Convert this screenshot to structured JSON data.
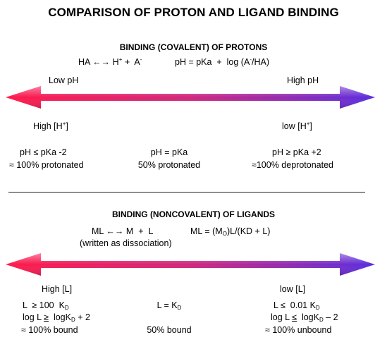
{
  "title": "COMPARISON OF PROTON AND LIGAND BINDING",
  "protons": {
    "heading": "BINDING (COVALENT) OF PROTONS",
    "reaction": {
      "lhs": "HA",
      "arrows": "←→",
      "h": "H",
      "plus_sup": "+",
      "mid": " +  A",
      "minus_sup": "-"
    },
    "equation": {
      "pre": "pH = pKa  +  log (A",
      "minus_sup": "-",
      "post": "/HA)"
    },
    "low_label": "Low pH",
    "high_label": "High pH",
    "left_conc": {
      "pre": "High [H",
      "sup": "+",
      "post": "]"
    },
    "right_conc": {
      "pre": "low [H",
      "sup": "+",
      "post": "]"
    },
    "left_cond": "pH ≤ pKa -2",
    "left_state": "≈ 100% protonated",
    "mid_cond": "pH = pKa",
    "mid_state": "50% protonated",
    "right_cond": "pH ≥ pKa +2",
    "right_state": "≈100% deprotonated"
  },
  "ligands": {
    "heading": "BINDING (NONCOVALENT) OF LIGANDS",
    "reaction": {
      "lhs": "ML",
      "arrows": "←→",
      "rhs": "M  +  L"
    },
    "reaction_note": "(written as dissociation)",
    "equation": {
      "pre": "ML = (M",
      "sub": "O",
      "post": ")L/(KD + L)"
    },
    "left_conc": "High [L]",
    "right_conc": "low [L]",
    "left_cond1": {
      "pre": "L  ≥ 100  K",
      "sub": "D"
    },
    "left_cond2": {
      "pre": "log L ",
      "op": "≥",
      "mid": "  logK",
      "sub": "D",
      "post": " + 2"
    },
    "left_state": "≈ 100% bound",
    "mid_cond": {
      "pre": "L = K",
      "sub": "D"
    },
    "mid_state": "50% bound",
    "right_cond1": {
      "pre": "L ≤  0.01 K",
      "sub": "D"
    },
    "right_cond2": {
      "pre": "log L ",
      "op": "≤",
      "mid": "  logK",
      "sub": "D",
      "post": " – 2"
    },
    "right_state": "≈ 100% unbound"
  },
  "colors": {
    "arrow_left": "#ff1a4a",
    "arrow_mid": "#d0287e",
    "arrow_right": "#5a2ee0"
  }
}
